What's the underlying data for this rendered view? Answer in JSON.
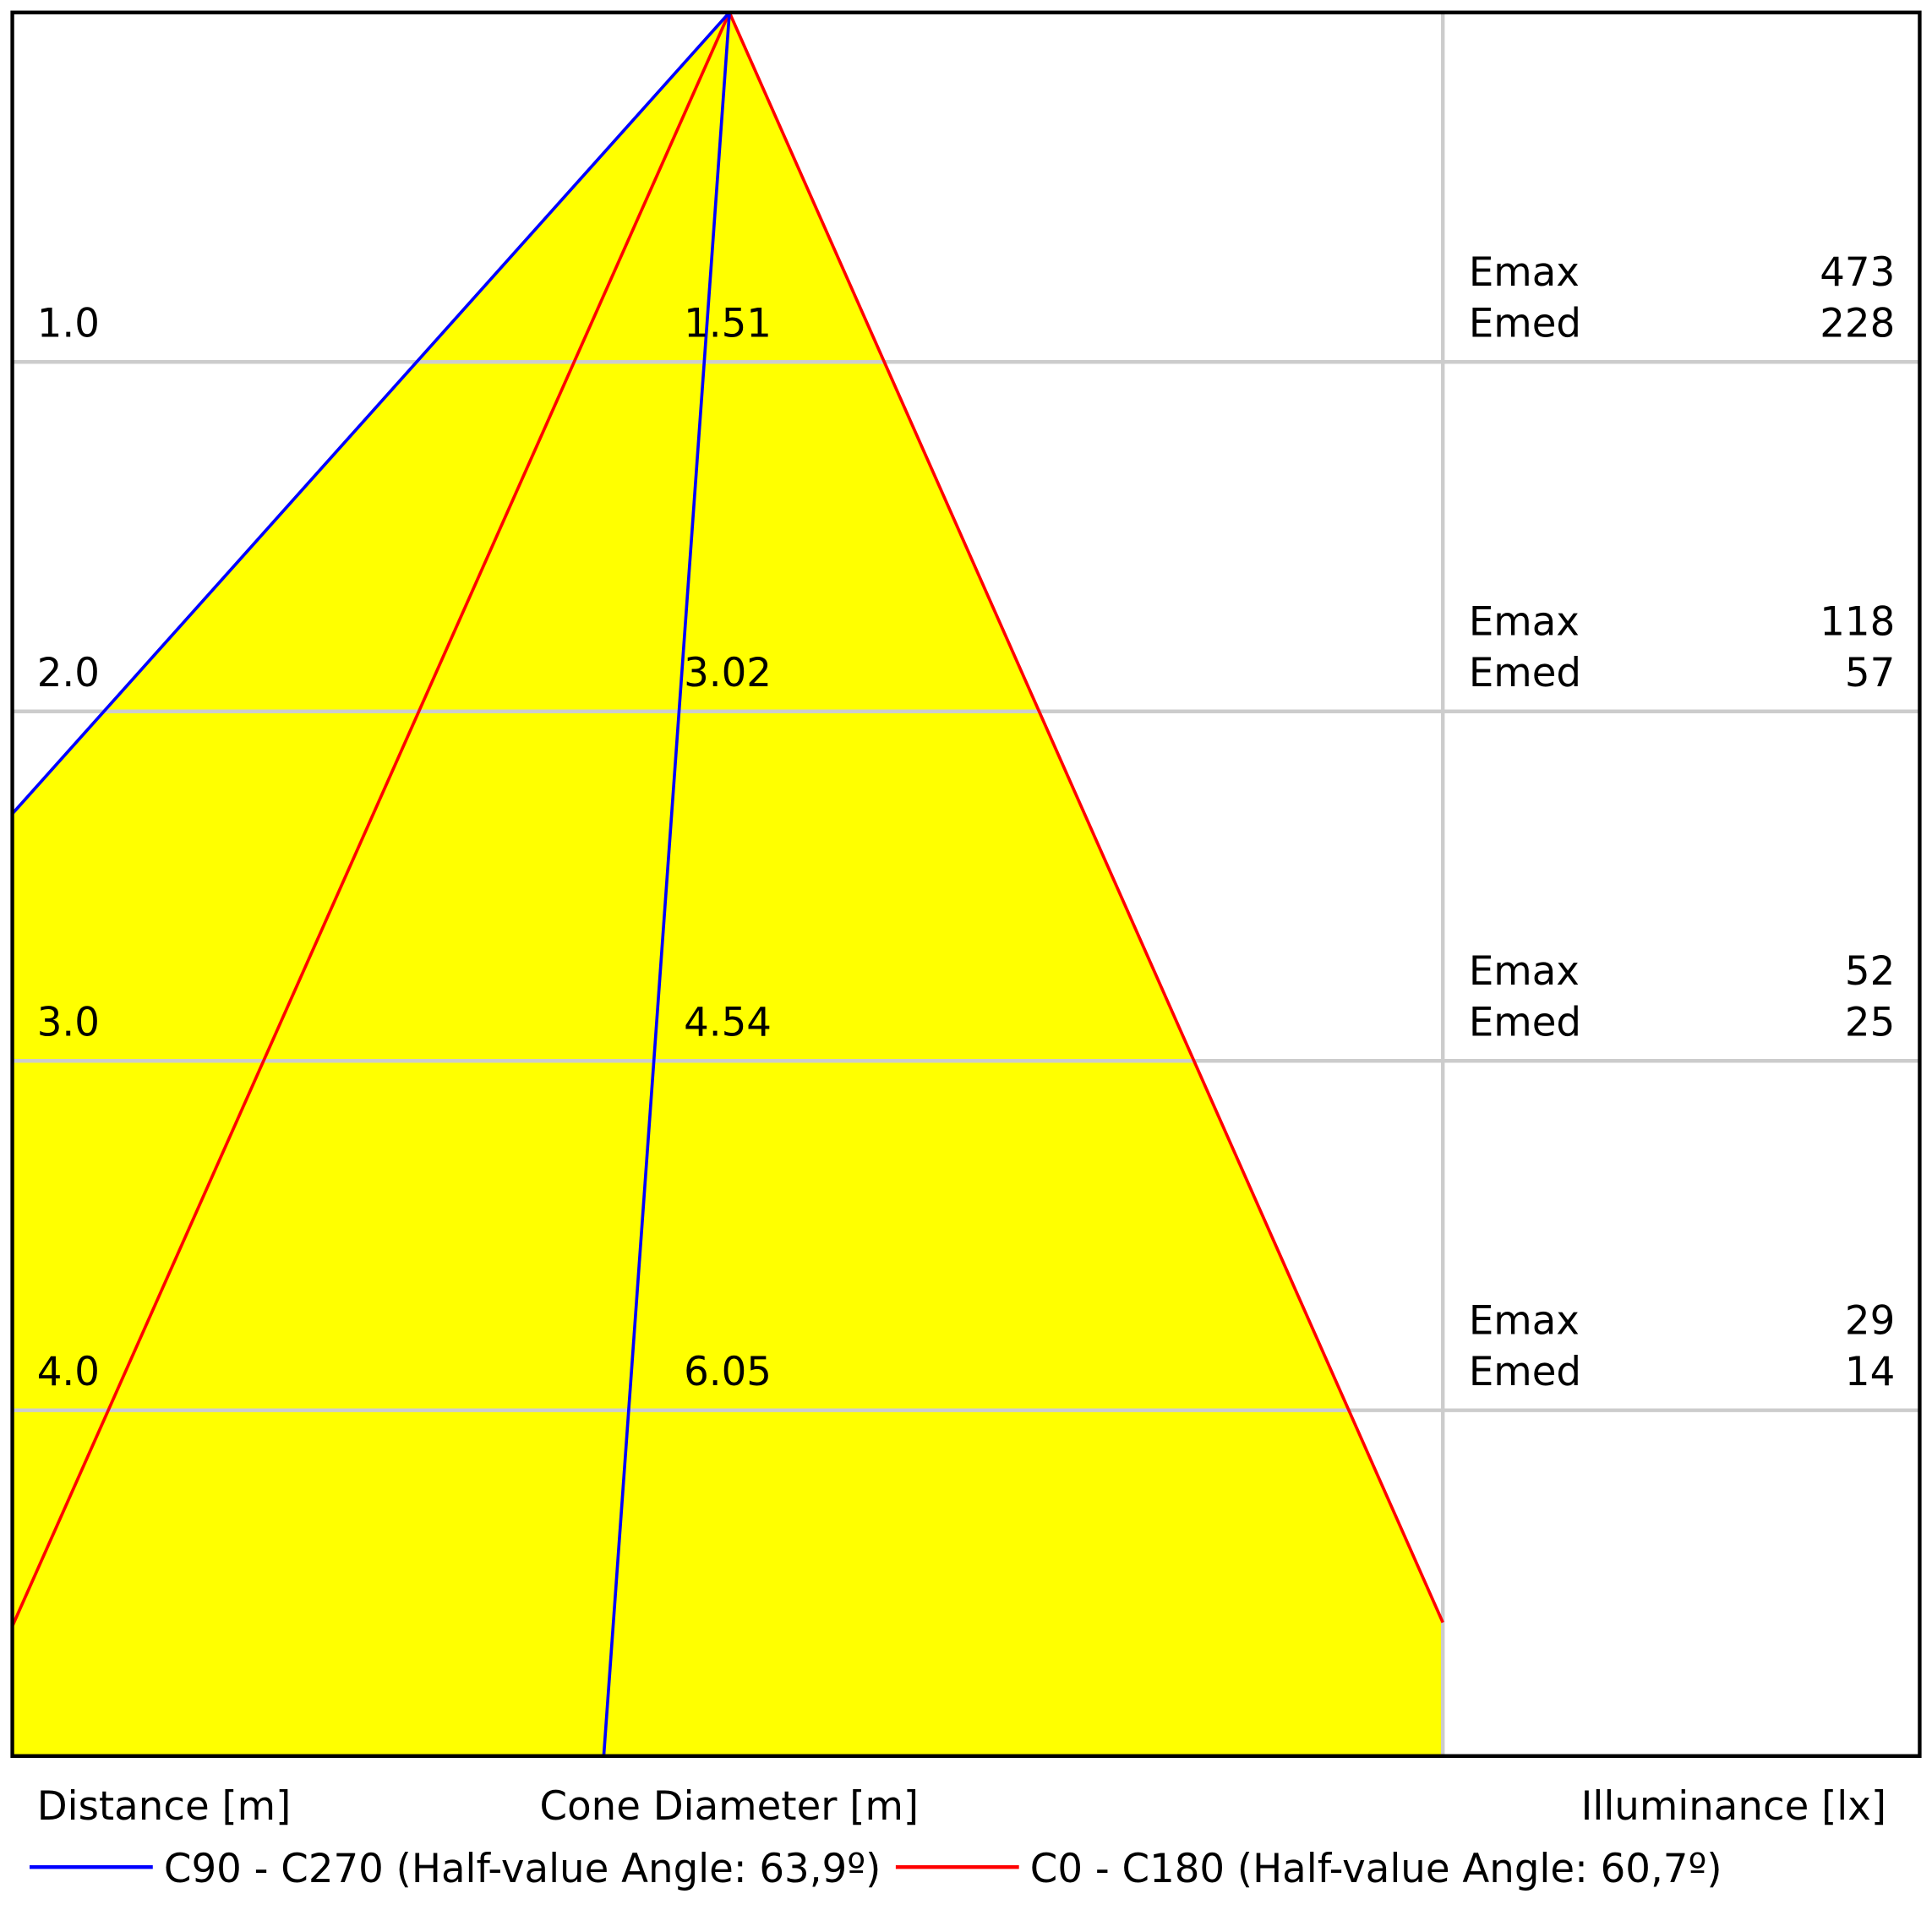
{
  "chart_data": {
    "type": "cone-diagram",
    "xlabel_distance": "Distance [m]",
    "xlabel_diameter": "Cone Diameter [m]",
    "xlabel_illuminance": "Illuminance [lx]",
    "emax_label": "Emax",
    "emed_label": "Emed",
    "rows": [
      {
        "distance": "1.0",
        "diameter": "1.51",
        "emax": "473",
        "emed": "228"
      },
      {
        "distance": "2.0",
        "diameter": "3.02",
        "emax": "118",
        "emed": "57"
      },
      {
        "distance": "3.0",
        "diameter": "4.54",
        "emax": "52",
        "emed": "25"
      },
      {
        "distance": "4.0",
        "diameter": "6.05",
        "emax": "29",
        "emed": "14"
      }
    ],
    "legend": [
      {
        "name": "C90 - C270 (Half-value Angle: 63,9º)",
        "color": "#0000ff"
      },
      {
        "name": "C0 - C180 (Half-value Angle: 60,7º)",
        "color": "#ff0000"
      }
    ],
    "fill_color": "#ffff00",
    "grid_color": "#cccccc"
  }
}
